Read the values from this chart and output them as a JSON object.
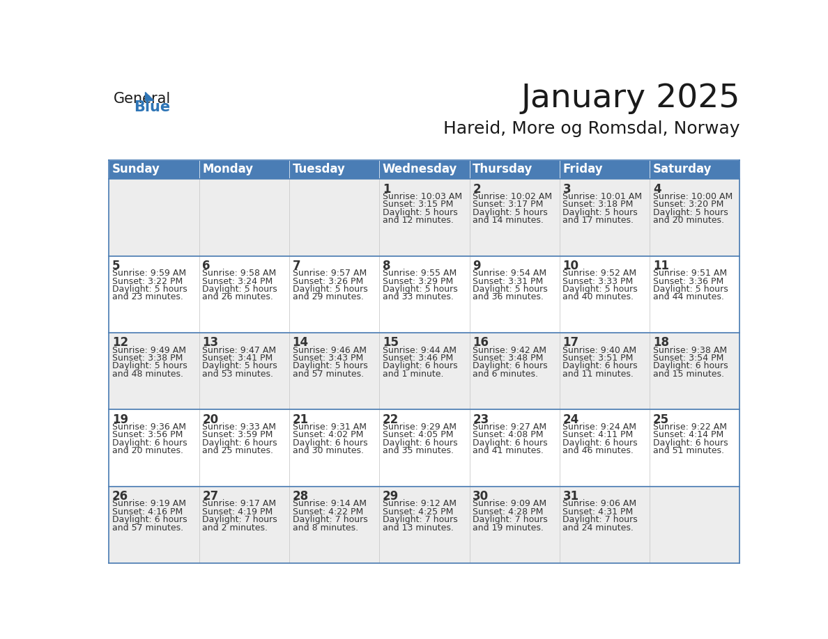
{
  "title": "January 2025",
  "subtitle": "Hareid, More og Romsdal, Norway",
  "header_color": "#4A7DB5",
  "header_text_color": "#FFFFFF",
  "cell_bg_white": "#FFFFFF",
  "cell_bg_gray": "#EDEDED",
  "day_number_color": "#333333",
  "text_color": "#333333",
  "border_color": "#4A7DB5",
  "row_border_color": "#4A7DB5",
  "days_of_week": [
    "Sunday",
    "Monday",
    "Tuesday",
    "Wednesday",
    "Thursday",
    "Friday",
    "Saturday"
  ],
  "weeks": [
    [
      {
        "day": "",
        "sunrise": "",
        "sunset": "",
        "daylight_line1": "",
        "daylight_line2": ""
      },
      {
        "day": "",
        "sunrise": "",
        "sunset": "",
        "daylight_line1": "",
        "daylight_line2": ""
      },
      {
        "day": "",
        "sunrise": "",
        "sunset": "",
        "daylight_line1": "",
        "daylight_line2": ""
      },
      {
        "day": "1",
        "sunrise": "Sunrise: 10:03 AM",
        "sunset": "Sunset: 3:15 PM",
        "daylight_line1": "Daylight: 5 hours",
        "daylight_line2": "and 12 minutes."
      },
      {
        "day": "2",
        "sunrise": "Sunrise: 10:02 AM",
        "sunset": "Sunset: 3:17 PM",
        "daylight_line1": "Daylight: 5 hours",
        "daylight_line2": "and 14 minutes."
      },
      {
        "day": "3",
        "sunrise": "Sunrise: 10:01 AM",
        "sunset": "Sunset: 3:18 PM",
        "daylight_line1": "Daylight: 5 hours",
        "daylight_line2": "and 17 minutes."
      },
      {
        "day": "4",
        "sunrise": "Sunrise: 10:00 AM",
        "sunset": "Sunset: 3:20 PM",
        "daylight_line1": "Daylight: 5 hours",
        "daylight_line2": "and 20 minutes."
      }
    ],
    [
      {
        "day": "5",
        "sunrise": "Sunrise: 9:59 AM",
        "sunset": "Sunset: 3:22 PM",
        "daylight_line1": "Daylight: 5 hours",
        "daylight_line2": "and 23 minutes."
      },
      {
        "day": "6",
        "sunrise": "Sunrise: 9:58 AM",
        "sunset": "Sunset: 3:24 PM",
        "daylight_line1": "Daylight: 5 hours",
        "daylight_line2": "and 26 minutes."
      },
      {
        "day": "7",
        "sunrise": "Sunrise: 9:57 AM",
        "sunset": "Sunset: 3:26 PM",
        "daylight_line1": "Daylight: 5 hours",
        "daylight_line2": "and 29 minutes."
      },
      {
        "day": "8",
        "sunrise": "Sunrise: 9:55 AM",
        "sunset": "Sunset: 3:29 PM",
        "daylight_line1": "Daylight: 5 hours",
        "daylight_line2": "and 33 minutes."
      },
      {
        "day": "9",
        "sunrise": "Sunrise: 9:54 AM",
        "sunset": "Sunset: 3:31 PM",
        "daylight_line1": "Daylight: 5 hours",
        "daylight_line2": "and 36 minutes."
      },
      {
        "day": "10",
        "sunrise": "Sunrise: 9:52 AM",
        "sunset": "Sunset: 3:33 PM",
        "daylight_line1": "Daylight: 5 hours",
        "daylight_line2": "and 40 minutes."
      },
      {
        "day": "11",
        "sunrise": "Sunrise: 9:51 AM",
        "sunset": "Sunset: 3:36 PM",
        "daylight_line1": "Daylight: 5 hours",
        "daylight_line2": "and 44 minutes."
      }
    ],
    [
      {
        "day": "12",
        "sunrise": "Sunrise: 9:49 AM",
        "sunset": "Sunset: 3:38 PM",
        "daylight_line1": "Daylight: 5 hours",
        "daylight_line2": "and 48 minutes."
      },
      {
        "day": "13",
        "sunrise": "Sunrise: 9:47 AM",
        "sunset": "Sunset: 3:41 PM",
        "daylight_line1": "Daylight: 5 hours",
        "daylight_line2": "and 53 minutes."
      },
      {
        "day": "14",
        "sunrise": "Sunrise: 9:46 AM",
        "sunset": "Sunset: 3:43 PM",
        "daylight_line1": "Daylight: 5 hours",
        "daylight_line2": "and 57 minutes."
      },
      {
        "day": "15",
        "sunrise": "Sunrise: 9:44 AM",
        "sunset": "Sunset: 3:46 PM",
        "daylight_line1": "Daylight: 6 hours",
        "daylight_line2": "and 1 minute."
      },
      {
        "day": "16",
        "sunrise": "Sunrise: 9:42 AM",
        "sunset": "Sunset: 3:48 PM",
        "daylight_line1": "Daylight: 6 hours",
        "daylight_line2": "and 6 minutes."
      },
      {
        "day": "17",
        "sunrise": "Sunrise: 9:40 AM",
        "sunset": "Sunset: 3:51 PM",
        "daylight_line1": "Daylight: 6 hours",
        "daylight_line2": "and 11 minutes."
      },
      {
        "day": "18",
        "sunrise": "Sunrise: 9:38 AM",
        "sunset": "Sunset: 3:54 PM",
        "daylight_line1": "Daylight: 6 hours",
        "daylight_line2": "and 15 minutes."
      }
    ],
    [
      {
        "day": "19",
        "sunrise": "Sunrise: 9:36 AM",
        "sunset": "Sunset: 3:56 PM",
        "daylight_line1": "Daylight: 6 hours",
        "daylight_line2": "and 20 minutes."
      },
      {
        "day": "20",
        "sunrise": "Sunrise: 9:33 AM",
        "sunset": "Sunset: 3:59 PM",
        "daylight_line1": "Daylight: 6 hours",
        "daylight_line2": "and 25 minutes."
      },
      {
        "day": "21",
        "sunrise": "Sunrise: 9:31 AM",
        "sunset": "Sunset: 4:02 PM",
        "daylight_line1": "Daylight: 6 hours",
        "daylight_line2": "and 30 minutes."
      },
      {
        "day": "22",
        "sunrise": "Sunrise: 9:29 AM",
        "sunset": "Sunset: 4:05 PM",
        "daylight_line1": "Daylight: 6 hours",
        "daylight_line2": "and 35 minutes."
      },
      {
        "day": "23",
        "sunrise": "Sunrise: 9:27 AM",
        "sunset": "Sunset: 4:08 PM",
        "daylight_line1": "Daylight: 6 hours",
        "daylight_line2": "and 41 minutes."
      },
      {
        "day": "24",
        "sunrise": "Sunrise: 9:24 AM",
        "sunset": "Sunset: 4:11 PM",
        "daylight_line1": "Daylight: 6 hours",
        "daylight_line2": "and 46 minutes."
      },
      {
        "day": "25",
        "sunrise": "Sunrise: 9:22 AM",
        "sunset": "Sunset: 4:14 PM",
        "daylight_line1": "Daylight: 6 hours",
        "daylight_line2": "and 51 minutes."
      }
    ],
    [
      {
        "day": "26",
        "sunrise": "Sunrise: 9:19 AM",
        "sunset": "Sunset: 4:16 PM",
        "daylight_line1": "Daylight: 6 hours",
        "daylight_line2": "and 57 minutes."
      },
      {
        "day": "27",
        "sunrise": "Sunrise: 9:17 AM",
        "sunset": "Sunset: 4:19 PM",
        "daylight_line1": "Daylight: 7 hours",
        "daylight_line2": "and 2 minutes."
      },
      {
        "day": "28",
        "sunrise": "Sunrise: 9:14 AM",
        "sunset": "Sunset: 4:22 PM",
        "daylight_line1": "Daylight: 7 hours",
        "daylight_line2": "and 8 minutes."
      },
      {
        "day": "29",
        "sunrise": "Sunrise: 9:12 AM",
        "sunset": "Sunset: 4:25 PM",
        "daylight_line1": "Daylight: 7 hours",
        "daylight_line2": "and 13 minutes."
      },
      {
        "day": "30",
        "sunrise": "Sunrise: 9:09 AM",
        "sunset": "Sunset: 4:28 PM",
        "daylight_line1": "Daylight: 7 hours",
        "daylight_line2": "and 19 minutes."
      },
      {
        "day": "31",
        "sunrise": "Sunrise: 9:06 AM",
        "sunset": "Sunset: 4:31 PM",
        "daylight_line1": "Daylight: 7 hours",
        "daylight_line2": "and 24 minutes."
      },
      {
        "day": "",
        "sunrise": "",
        "sunset": "",
        "daylight_line1": "",
        "daylight_line2": ""
      }
    ]
  ],
  "title_fontsize": 34,
  "subtitle_fontsize": 18,
  "header_fontsize": 12,
  "day_num_fontsize": 12,
  "cell_text_fontsize": 9
}
